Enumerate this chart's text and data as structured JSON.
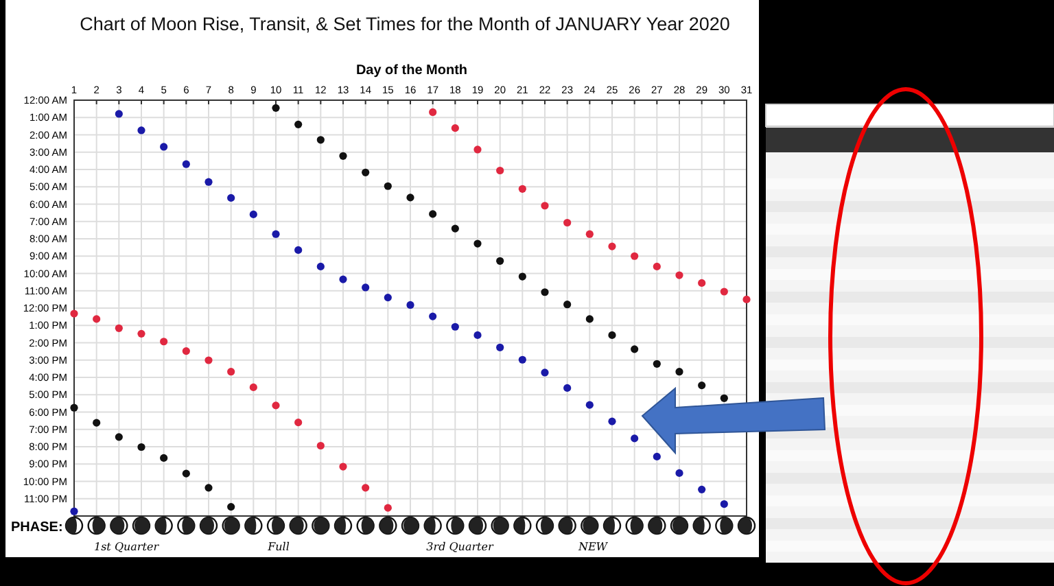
{
  "chart_data": {
    "type": "scatter",
    "title": "Chart of Moon Rise, Transit, & Set Times for the Month of JANUARY Year 2020",
    "xlabel": "Day of the Month",
    "x": [
      1,
      2,
      3,
      4,
      5,
      6,
      7,
      8,
      9,
      10,
      11,
      12,
      13,
      14,
      15,
      16,
      17,
      18,
      19,
      20,
      21,
      22,
      23,
      24,
      25,
      26,
      27,
      28,
      29,
      30,
      31
    ],
    "xlim": [
      1,
      31
    ],
    "xticks": [
      1,
      2,
      3,
      4,
      5,
      6,
      7,
      8,
      9,
      10,
      11,
      12,
      13,
      14,
      15,
      16,
      17,
      18,
      19,
      20,
      21,
      22,
      23,
      24,
      25,
      26,
      27,
      28,
      29,
      30,
      31
    ],
    "ylim": [
      24,
      0
    ],
    "yticks": [
      {
        "value": 0,
        "label": "12:00 AM"
      },
      {
        "value": 1,
        "label": "1:00 AM"
      },
      {
        "value": 2,
        "label": "2:00 AM"
      },
      {
        "value": 3,
        "label": "3:00 AM"
      },
      {
        "value": 4,
        "label": "4:00 AM"
      },
      {
        "value": 5,
        "label": "5:00 AM"
      },
      {
        "value": 6,
        "label": "6:00 AM"
      },
      {
        "value": 7,
        "label": "7:00 AM"
      },
      {
        "value": 8,
        "label": "8:00 AM"
      },
      {
        "value": 9,
        "label": "9:00 AM"
      },
      {
        "value": 10,
        "label": "10:00 AM"
      },
      {
        "value": 11,
        "label": "11:00 AM"
      },
      {
        "value": 12,
        "label": "12:00 PM"
      },
      {
        "value": 13,
        "label": "1:00 PM"
      },
      {
        "value": 14,
        "label": "2:00 PM"
      },
      {
        "value": 15,
        "label": "3:00 PM"
      },
      {
        "value": 16,
        "label": "4:00 PM"
      },
      {
        "value": 17,
        "label": "5:00 PM"
      },
      {
        "value": 18,
        "label": "6:00 PM"
      },
      {
        "value": 19,
        "label": "7:00 PM"
      },
      {
        "value": 20,
        "label": "8:00 PM"
      },
      {
        "value": 21,
        "label": "9:00 PM"
      },
      {
        "value": 22,
        "label": "10:00 PM"
      },
      {
        "value": 23,
        "label": "11:00 PM"
      }
    ],
    "grid": true,
    "marker": "circle",
    "series": [
      {
        "color": "#e02840",
        "values": [
          12.32,
          12.63,
          13.16,
          13.48,
          13.93,
          14.48,
          15.01,
          15.67,
          16.57,
          17.62,
          18.6,
          19.94,
          21.15,
          22.37,
          23.53,
          null,
          0.69,
          1.61,
          2.85,
          4.06,
          5.12,
          6.09,
          7.07,
          7.73,
          8.44,
          9.0,
          9.6,
          10.1,
          10.55,
          11.05,
          11.5
        ]
      },
      {
        "color": "#111111",
        "values": [
          17.75,
          18.62,
          19.44,
          20.02,
          20.65,
          21.55,
          22.37,
          23.47,
          null,
          0.45,
          1.4,
          2.29,
          3.22,
          4.17,
          4.96,
          5.62,
          6.57,
          7.41,
          8.28,
          9.28,
          10.18,
          11.08,
          11.79,
          12.63,
          13.56,
          14.37,
          15.22,
          15.67,
          16.46,
          17.2,
          null
        ]
      },
      {
        "color": "#1a1aa8",
        "values": [
          23.73,
          null,
          0.79,
          1.74,
          2.69,
          3.69,
          4.72,
          5.64,
          6.59,
          7.73,
          8.65,
          9.6,
          10.34,
          10.81,
          11.39,
          11.82,
          12.48,
          13.08,
          13.56,
          14.27,
          14.98,
          15.72,
          16.61,
          17.59,
          18.54,
          19.52,
          20.57,
          21.52,
          22.47,
          23.31,
          null
        ]
      }
    ],
    "annotations": [
      "PHASE:",
      "1st Quarter",
      "Full",
      "3rd Quarter",
      "NEW"
    ]
  }
}
